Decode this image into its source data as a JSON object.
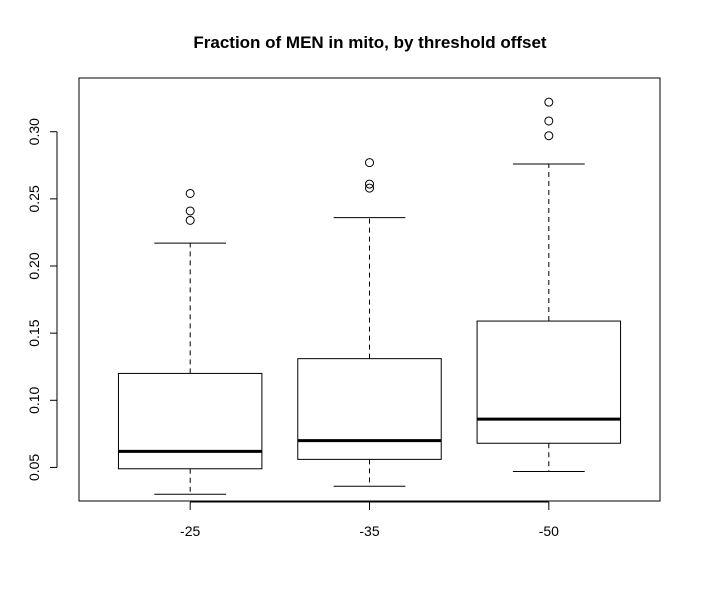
{
  "chart_data": {
    "type": "boxplot",
    "title": "Fraction of MEN in mito, by threshold offset",
    "xlabel": "",
    "ylabel": "",
    "categories": [
      "-25",
      "-35",
      "-50"
    ],
    "ylim": [
      0.025,
      0.34
    ],
    "yticks": [
      0.05,
      0.1,
      0.15,
      0.2,
      0.25,
      0.3
    ],
    "ytick_labels": [
      "0.05",
      "0.10",
      "0.15",
      "0.20",
      "0.25",
      "0.30"
    ],
    "boxes": [
      {
        "category": "-25",
        "whisker_low": 0.03,
        "q1": 0.049,
        "median": 0.062,
        "q3": 0.12,
        "whisker_high": 0.217,
        "outliers": [
          0.234,
          0.241,
          0.254
        ]
      },
      {
        "category": "-35",
        "whisker_low": 0.036,
        "q1": 0.056,
        "median": 0.07,
        "q3": 0.131,
        "whisker_high": 0.236,
        "outliers": [
          0.258,
          0.261,
          0.277
        ]
      },
      {
        "category": "-50",
        "whisker_low": 0.047,
        "q1": 0.068,
        "median": 0.086,
        "q3": 0.159,
        "whisker_high": 0.276,
        "outliers": [
          0.297,
          0.308,
          0.322
        ]
      }
    ],
    "grid": false,
    "legend": "none"
  }
}
